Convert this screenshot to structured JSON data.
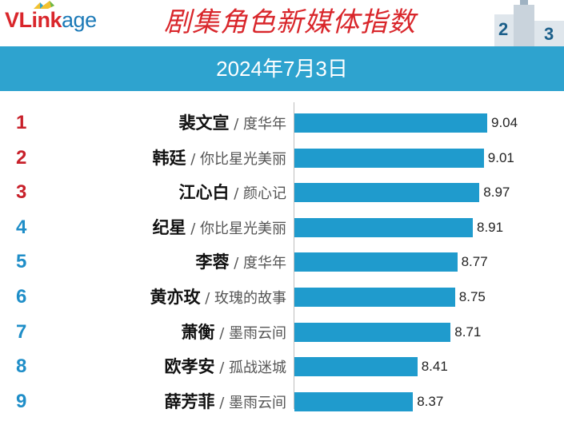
{
  "brand": {
    "logo_v": "V",
    "logo_link": "Link",
    "logo_age": "age"
  },
  "title": "剧集角色新媒体指数",
  "date": "2024年7月3日",
  "colors": {
    "accent_red": "#d9262b",
    "band_blue": "#2ea3cf",
    "bar_blue": "#1f9bcd",
    "rank_top": "#c8202a",
    "rank_rest": "#1f8ec8"
  },
  "podium": {
    "label_2": "2",
    "label_3": "3"
  },
  "chart_data": {
    "type": "bar",
    "orientation": "horizontal",
    "categories": [
      "裴文宣 / 度华年",
      "韩廷 / 你比星光美丽",
      "江心白 / 颜心记",
      "纪星 / 你比星光美丽",
      "李蓉 / 度华年",
      "黄亦玫 / 玫瑰的故事",
      "萧衡 / 墨雨云间",
      "欧孝安 / 孤战迷城",
      "薛芳菲 / 墨雨云间"
    ],
    "xlim": [
      7.3,
      9.1
    ],
    "grid": false,
    "items": [
      {
        "rank": "1",
        "name": "裴文宣",
        "drama": "度华年",
        "value": 9.04,
        "value_label": "9.04"
      },
      {
        "rank": "2",
        "name": "韩廷",
        "drama": "你比星光美丽",
        "value": 9.01,
        "value_label": "9.01"
      },
      {
        "rank": "3",
        "name": "江心白",
        "drama": "颜心记",
        "value": 8.97,
        "value_label": "8.97"
      },
      {
        "rank": "4",
        "name": "纪星",
        "drama": "你比星光美丽",
        "value": 8.91,
        "value_label": "8.91"
      },
      {
        "rank": "5",
        "name": "李蓉",
        "drama": "度华年",
        "value": 8.77,
        "value_label": "8.77"
      },
      {
        "rank": "6",
        "name": "黄亦玫",
        "drama": "玫瑰的故事",
        "value": 8.75,
        "value_label": "8.75"
      },
      {
        "rank": "7",
        "name": "萧衡",
        "drama": "墨雨云间",
        "value": 8.71,
        "value_label": "8.71"
      },
      {
        "rank": "8",
        "name": "欧孝安",
        "drama": "孤战迷城",
        "value": 8.41,
        "value_label": "8.41"
      },
      {
        "rank": "9",
        "name": "薛芳菲",
        "drama": "墨雨云间",
        "value": 8.37,
        "value_label": "8.37"
      }
    ]
  }
}
